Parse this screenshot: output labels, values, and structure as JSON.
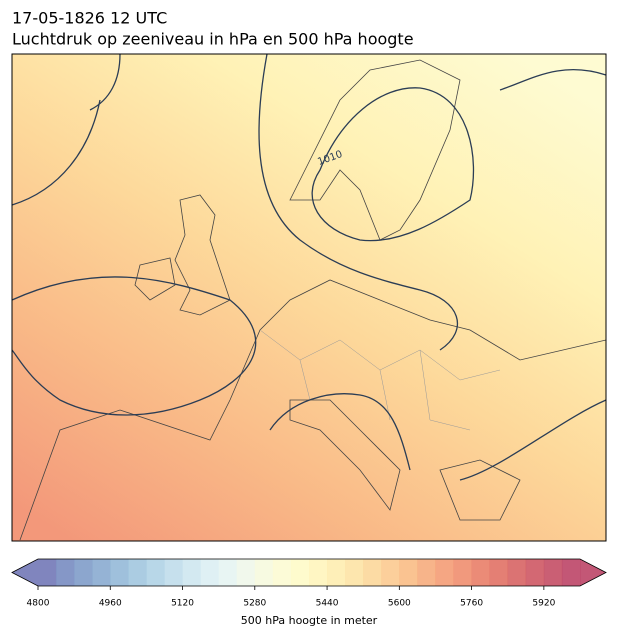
{
  "title": "17-05-1826 12 UTC",
  "subtitle": "Luchtdruk op zeeniveau in hPa en 500 hPa hoogte",
  "map": {
    "isobar_label": "1010"
  },
  "colorbar": {
    "label": "500 hPa hoogte in meter",
    "lim": [
      4800,
      6000
    ],
    "ticks": [
      4800,
      4960,
      5120,
      5280,
      5440,
      5600,
      5760,
      5920
    ],
    "levels": [
      4800,
      4840,
      4880,
      4920,
      4960,
      5000,
      5040,
      5080,
      5120,
      5160,
      5200,
      5240,
      5280,
      5320,
      5360,
      5400,
      5440,
      5480,
      5520,
      5560,
      5600,
      5640,
      5680,
      5720,
      5760,
      5800,
      5840,
      5880,
      5920,
      5960,
      6000
    ],
    "colors": [
      "#6a70b3",
      "#7085bd",
      "#7896c6",
      "#82a6ce",
      "#8eb5d6",
      "#9cc3dd",
      "#abd0e4",
      "#bcdbea",
      "#cbe5ef",
      "#d9edf2",
      "#e4f3f1",
      "#eef7e9",
      "#f6f9dc",
      "#fbfad0",
      "#fefac4",
      "#fff5b8",
      "#feecab",
      "#fde2a0",
      "#fcd594",
      "#fbc789",
      "#f9b87e",
      "#f6a775",
      "#f3976d",
      "#ee8766",
      "#e7775f",
      "#df685c",
      "#d55a5a",
      "#cb4d5b",
      "#c1435c",
      "#b83a5e"
    ]
  }
}
